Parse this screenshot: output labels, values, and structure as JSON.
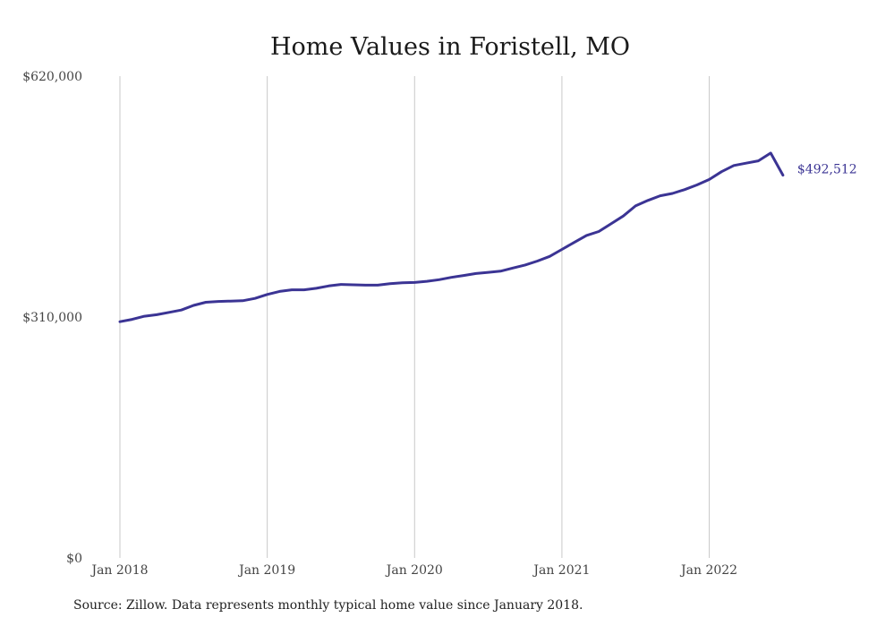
{
  "chart_data": {
    "type": "line",
    "title": "Home Values in Foristell, MO",
    "xlabel": "",
    "ylabel": "",
    "x_start": "2018-01",
    "x_ticks": [
      {
        "label": "Jan 2018",
        "month": "2018-01"
      },
      {
        "label": "Jan 2019",
        "month": "2019-01"
      },
      {
        "label": "Jan 2020",
        "month": "2020-01"
      },
      {
        "label": "Jan 2021",
        "month": "2021-01"
      },
      {
        "label": "Jan 2022",
        "month": "2022-01"
      }
    ],
    "y_ticks": [
      {
        "label": "$0",
        "value": 0
      },
      {
        "label": "$310,000",
        "value": 310000
      },
      {
        "label": "$620,000",
        "value": 620000
      }
    ],
    "ylim": [
      0,
      620000
    ],
    "grid": "vertical",
    "series_color": "#3b3494",
    "grid_color": "#c8c8c8",
    "end_label": "$492,512",
    "series": [
      {
        "name": "",
        "x": [
          "2018-01",
          "2018-02",
          "2018-03",
          "2018-04",
          "2018-05",
          "2018-06",
          "2018-07",
          "2018-08",
          "2018-09",
          "2018-10",
          "2018-11",
          "2018-12",
          "2019-01",
          "2019-02",
          "2019-03",
          "2019-04",
          "2019-05",
          "2019-06",
          "2019-07",
          "2019-08",
          "2019-09",
          "2019-10",
          "2019-11",
          "2019-12",
          "2020-01",
          "2020-02",
          "2020-03",
          "2020-04",
          "2020-05",
          "2020-06",
          "2020-07",
          "2020-08",
          "2020-09",
          "2020-10",
          "2020-11",
          "2020-12",
          "2021-01",
          "2021-02",
          "2021-03",
          "2021-04",
          "2021-05",
          "2021-06",
          "2021-07",
          "2021-08",
          "2021-09",
          "2021-10",
          "2021-11",
          "2021-12",
          "2022-01",
          "2022-02",
          "2022-03",
          "2022-04",
          "2022-05",
          "2022-06",
          "2022-07"
        ],
        "values": [
          304000,
          307000,
          311000,
          313000,
          316000,
          319000,
          325000,
          329000,
          330000,
          330500,
          331000,
          334000,
          339000,
          343000,
          345000,
          345000,
          347000,
          350000,
          352000,
          351500,
          351000,
          351000,
          353000,
          354000,
          354500,
          356000,
          358000,
          361000,
          363500,
          366000,
          367500,
          369000,
          373000,
          377000,
          382000,
          388000,
          397000,
          406000,
          415000,
          420000,
          430000,
          440000,
          453000,
          460000,
          466000,
          469000,
          474000,
          480000,
          487000,
          497000,
          505000,
          508000,
          511000,
          521000,
          492512
        ]
      }
    ]
  },
  "source_note": "Source: Zillow. Data represents monthly typical home value since January 2018."
}
